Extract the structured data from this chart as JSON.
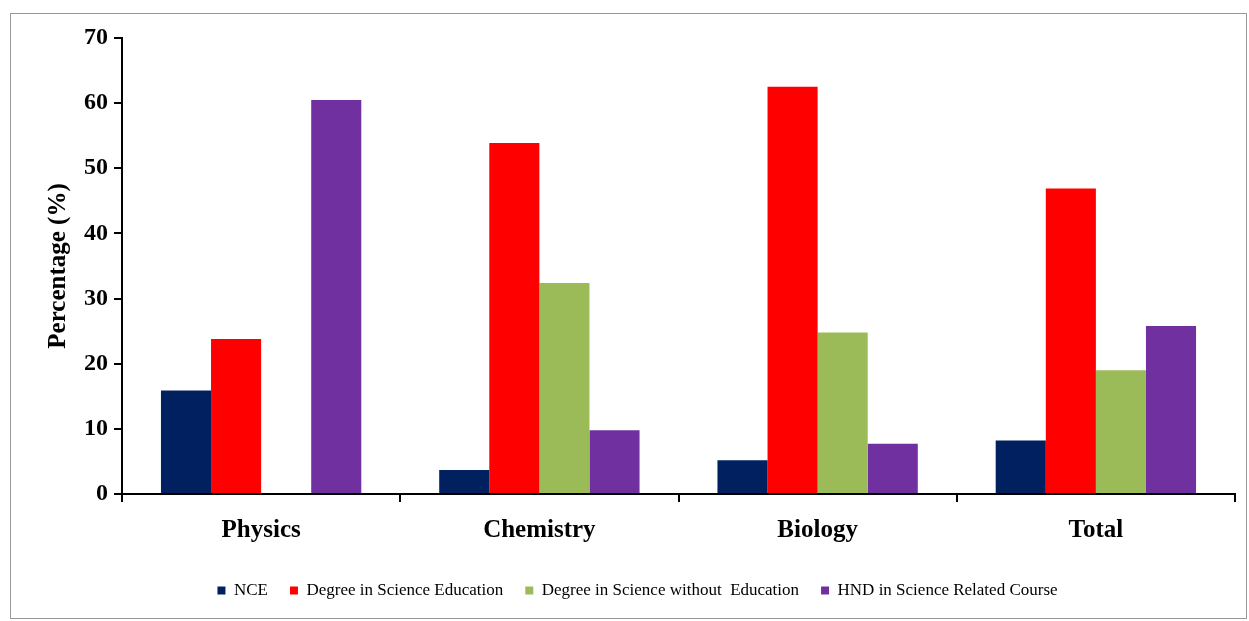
{
  "chart_data": {
    "type": "bar",
    "ylabel": "Percentage (%)",
    "categories": [
      "Physics",
      "Chemistry",
      "Biology",
      "Total"
    ],
    "series": [
      {
        "name": "NCE",
        "color": "#002060",
        "values": [
          15.9,
          3.7,
          5.2,
          8.2
        ]
      },
      {
        "name": "Degree in Science Education",
        "color": "#ff0000",
        "values": [
          23.8,
          53.9,
          62.5,
          46.9
        ]
      },
      {
        "name": "Degree in Science without  Education",
        "color": "#9bbb59",
        "values": [
          0,
          32.4,
          24.8,
          19
        ]
      },
      {
        "name": "HND in Science Related Course",
        "color": "#7030a0",
        "values": [
          60.5,
          9.8,
          7.7,
          25.8
        ]
      }
    ],
    "ylim": [
      0,
      70
    ],
    "yticks": [
      0,
      10,
      20,
      30,
      40,
      50,
      60,
      70
    ],
    "grid": false,
    "legend": "bottom"
  }
}
